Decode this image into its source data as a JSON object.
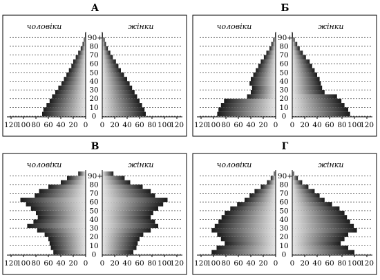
{
  "figure": {
    "panels_order": [
      "A",
      "B",
      "V",
      "G"
    ]
  },
  "chart_data": [
    {
      "type": "bar",
      "title": "А",
      "male_label": "чоловіки",
      "female_label": "жінки",
      "age_groups": [
        "0",
        "5",
        "10",
        "15",
        "20",
        "25",
        "30",
        "35",
        "40",
        "45",
        "50",
        "55",
        "60",
        "65",
        "70",
        "75",
        "80",
        "85",
        "90+"
      ],
      "age_tick_labels": [
        "0",
        "10",
        "20",
        "30",
        "40",
        "50",
        "60",
        "70",
        "80",
        "90+"
      ],
      "x_ticks": [
        "120",
        "100",
        "80",
        "60",
        "40",
        "20",
        "0"
      ],
      "xlim": [
        0,
        120
      ],
      "series": [
        {
          "name": "чоловіки",
          "values": [
            70,
            68,
            63,
            58,
            54,
            49,
            44,
            39,
            35,
            31,
            27,
            23,
            20,
            16,
            12,
            8,
            5,
            3,
            1
          ]
        },
        {
          "name": "жінки",
          "values": [
            70,
            68,
            64,
            60,
            56,
            52,
            48,
            44,
            40,
            35,
            30,
            26,
            22,
            17,
            13,
            9,
            6,
            4,
            1
          ]
        }
      ]
    },
    {
      "type": "bar",
      "title": "Б",
      "male_label": "чоловіки",
      "female_label": "жінки",
      "age_groups": [
        "0",
        "5",
        "10",
        "15",
        "20",
        "25",
        "30",
        "35",
        "40",
        "45",
        "50",
        "55",
        "60",
        "65",
        "70",
        "75",
        "80",
        "85",
        "90+"
      ],
      "age_tick_labels": [
        "0",
        "10",
        "20",
        "30",
        "40",
        "50",
        "60",
        "70",
        "80",
        "90+"
      ],
      "x_ticks": [
        "120",
        "100",
        "80",
        "60",
        "40",
        "20",
        "0"
      ],
      "xlim": [
        0,
        120
      ],
      "series": [
        {
          "name": "чоловіки",
          "values": [
            94,
            92,
            88,
            83,
            46,
            40,
            38,
            42,
            40,
            36,
            32,
            28,
            24,
            19,
            15,
            10,
            7,
            4,
            1
          ]
        },
        {
          "name": "жінки",
          "values": [
            93,
            90,
            84,
            79,
            72,
            52,
            48,
            46,
            44,
            40,
            36,
            32,
            28,
            22,
            17,
            12,
            8,
            4,
            1
          ]
        }
      ]
    },
    {
      "type": "bar",
      "title": "В",
      "male_label": "чоловіки",
      "female_label": "жінки",
      "age_groups": [
        "0",
        "5",
        "10",
        "15",
        "20",
        "25",
        "30",
        "35",
        "40",
        "45",
        "50",
        "55",
        "60",
        "65",
        "70",
        "75",
        "80",
        "85",
        "90+"
      ],
      "age_tick_labels": [
        "0",
        "10",
        "20",
        "30",
        "40",
        "50",
        "60",
        "70",
        "80",
        "90+"
      ],
      "x_ticks": [
        "120",
        "100",
        "80",
        "60",
        "40",
        "20",
        "0"
      ],
      "xlim": [
        0,
        120
      ],
      "series": [
        {
          "name": "чоловіки",
          "values": [
            52,
            56,
            58,
            60,
            66,
            78,
            94,
            84,
            77,
            80,
            88,
            96,
            105,
            82,
            75,
            60,
            40,
            30,
            12
          ]
        },
        {
          "name": "жінки",
          "values": [
            50,
            55,
            57,
            60,
            66,
            78,
            90,
            85,
            78,
            82,
            90,
            98,
            105,
            85,
            78,
            65,
            45,
            36,
            18
          ]
        }
      ]
    },
    {
      "type": "bar",
      "title": "Г",
      "male_label": "чоловіки",
      "female_label": "жінки",
      "age_groups": [
        "0",
        "5",
        "10",
        "15",
        "20",
        "25",
        "30",
        "35",
        "40",
        "45",
        "50",
        "55",
        "60",
        "65",
        "70",
        "75",
        "80",
        "85",
        "90+"
      ],
      "age_tick_labels": [
        "0",
        "10",
        "20",
        "30",
        "40",
        "50",
        "60",
        "70",
        "80",
        "90+"
      ],
      "x_ticks": [
        "120",
        "100",
        "80",
        "60",
        "40",
        "20",
        "0"
      ],
      "xlim": [
        0,
        120
      ],
      "series": [
        {
          "name": "чоловіки",
          "values": [
            103,
            95,
            82,
            88,
            94,
            103,
            98,
            92,
            87,
            82,
            73,
            62,
            50,
            42,
            34,
            24,
            14,
            8,
            3
          ]
        },
        {
          "name": "жінки",
          "values": [
            100,
            90,
            78,
            84,
            90,
            104,
            99,
            93,
            88,
            84,
            76,
            64,
            52,
            44,
            36,
            26,
            16,
            9,
            3
          ]
        }
      ]
    }
  ]
}
